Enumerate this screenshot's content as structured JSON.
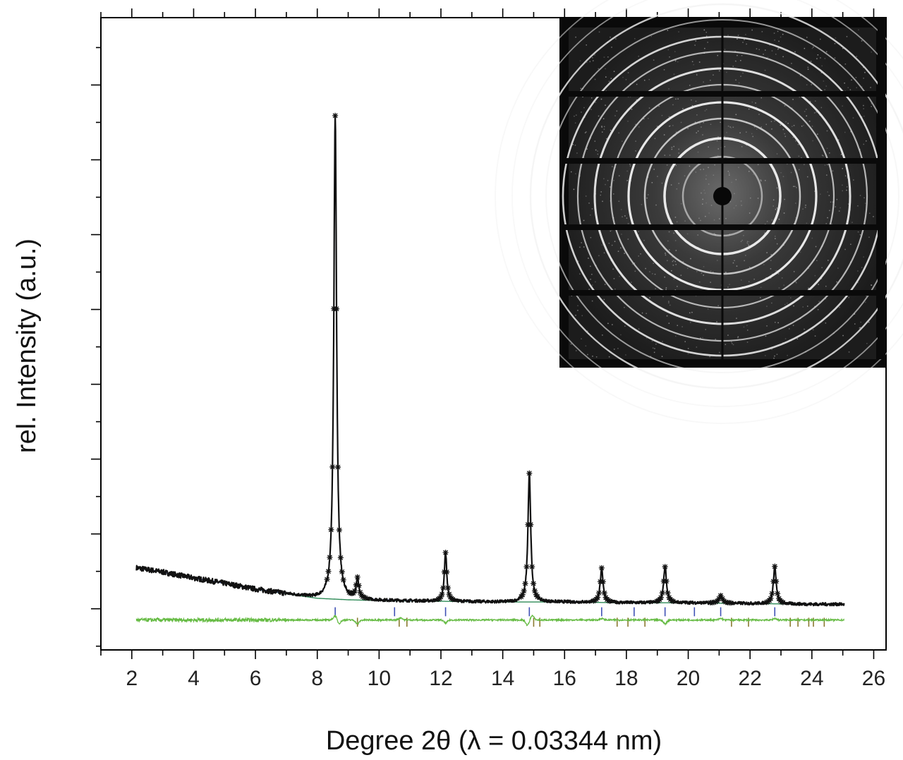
{
  "chart_data": {
    "type": "line",
    "title": "",
    "xlabel": "Degree 2θ (λ = 0.03344 nm)",
    "ylabel": "rel. Intensity (a.u.)",
    "xlim": [
      1,
      26.4
    ],
    "ylim": [
      -0.55,
      7.9
    ],
    "x_ticks": [
      2,
      4,
      6,
      8,
      10,
      12,
      14,
      16,
      18,
      20,
      22,
      24,
      26
    ],
    "y_tick_labels_shown": false,
    "grid": false,
    "legend": "none",
    "inset": "2D diffraction ring image (top-right)",
    "colors": {
      "observed": "#111111",
      "calculated": "#3f51b5",
      "background": "#2e8b57",
      "difference": "#66bb44",
      "phase1_reflections": "#3f51b5",
      "phase2_reflections": "#8a7a30"
    },
    "background_curve": {
      "x": [
        2.1,
        3,
        4,
        5,
        6,
        7,
        8,
        9,
        10,
        12,
        14,
        16,
        18,
        20,
        22,
        24,
        25
      ],
      "y": [
        0.55,
        0.49,
        0.41,
        0.34,
        0.26,
        0.2,
        0.14,
        0.12,
        0.11,
        0.1,
        0.09,
        0.09,
        0.08,
        0.08,
        0.07,
        0.06,
        0.06
      ]
    },
    "peaks": [
      {
        "x": 8.58,
        "height": 6.46,
        "width": 0.08
      },
      {
        "x": 9.3,
        "height": 0.27,
        "width": 0.08
      },
      {
        "x": 12.15,
        "height": 0.65,
        "width": 0.07
      },
      {
        "x": 14.86,
        "height": 1.72,
        "width": 0.08
      },
      {
        "x": 17.2,
        "height": 0.46,
        "width": 0.08
      },
      {
        "x": 19.25,
        "height": 0.48,
        "width": 0.08
      },
      {
        "x": 21.05,
        "height": 0.1,
        "width": 0.1
      },
      {
        "x": 22.8,
        "height": 0.5,
        "width": 0.08
      }
    ],
    "reflections_phase1": [
      8.58,
      10.5,
      12.15,
      14.86,
      17.2,
      18.25,
      19.25,
      20.2,
      21.05,
      22.8
    ],
    "reflections_phase2": [
      9.3,
      10.65,
      10.9,
      15.0,
      15.2,
      17.7,
      18.05,
      18.6,
      21.4,
      21.95,
      23.3,
      23.55,
      23.9,
      24.05,
      24.4
    ],
    "difference_offset": -0.15
  }
}
